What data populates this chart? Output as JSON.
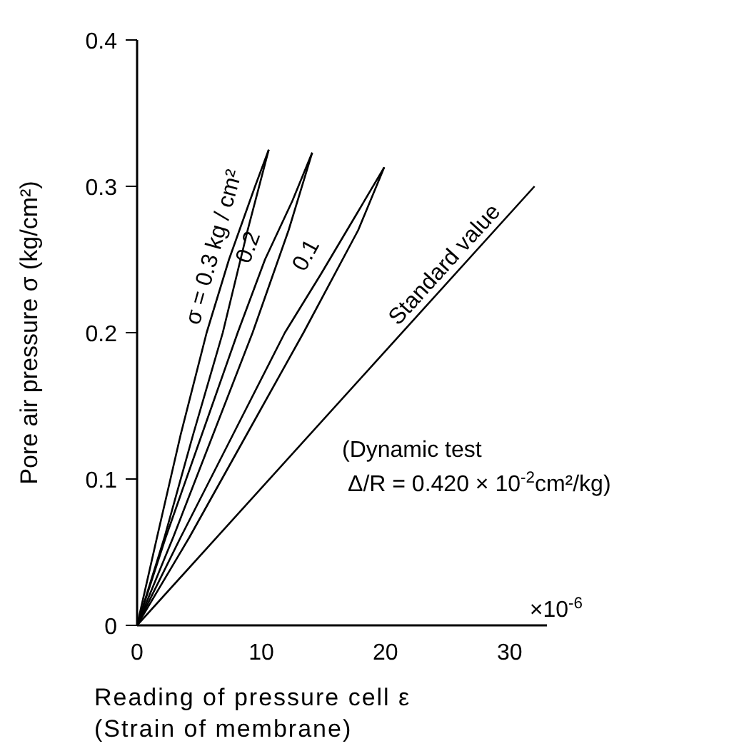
{
  "chart_data": {
    "type": "line",
    "xlabel": "Reading of pressure cell ε\n(Strain of membrane)",
    "ylabel": "Pore air pressure σ  (kg/cm²)",
    "xlim": [
      0,
      33
    ],
    "ylim": [
      0,
      0.4
    ],
    "xticks": [
      0,
      10,
      20,
      30
    ],
    "yticks": [
      0,
      0.1,
      0.2,
      0.3,
      0.4
    ],
    "marker": "none",
    "line_style": "solid",
    "series": [
      {
        "name": "σ = 0.3 kg / cm²",
        "color": "#000000",
        "x": [
          0,
          2.2,
          4.5,
          6.9,
          8.9,
          10.6
        ],
        "values": [
          0,
          0.06,
          0.13,
          0.2,
          0.27,
          0.325
        ]
      },
      {
        "color": "#000000",
        "x": [
          0,
          1.6,
          3.5,
          5.6,
          7.4,
          9.5,
          10.6
        ],
        "values": [
          0,
          0.06,
          0.13,
          0.2,
          0.25,
          0.3,
          0.325
        ]
      },
      {
        "name": "0.2",
        "color": "#000000",
        "x": [
          0,
          2.9,
          6.1,
          9.3,
          12.2,
          14.1
        ],
        "values": [
          0,
          0.06,
          0.13,
          0.2,
          0.27,
          0.323
        ]
      },
      {
        "color": "#000000",
        "x": [
          0,
          2.3,
          5.2,
          8.1,
          10.3,
          12.5,
          14.1
        ],
        "values": [
          0,
          0.06,
          0.13,
          0.2,
          0.25,
          0.29,
          0.323
        ]
      },
      {
        "name": "0.1",
        "color": "#000000",
        "x": [
          0,
          4.2,
          8.8,
          13.4,
          17.8,
          19.9
        ],
        "values": [
          0,
          0.06,
          0.13,
          0.2,
          0.27,
          0.313
        ]
      },
      {
        "color": "#000000",
        "x": [
          0,
          3.5,
          7.7,
          11.9,
          14.8,
          17.6,
          19.9
        ],
        "values": [
          0,
          0.06,
          0.13,
          0.2,
          0.24,
          0.28,
          0.313
        ]
      },
      {
        "name": "Standard value",
        "color": "#000000",
        "x": [
          0,
          32
        ],
        "values": [
          0,
          0.3
        ]
      }
    ],
    "annotations": [
      "×10$^{-6}$",
      "(Dynamic test",
      "Δ/R = 0.420 × 10$^{-2}$cm²/kg)"
    ]
  }
}
